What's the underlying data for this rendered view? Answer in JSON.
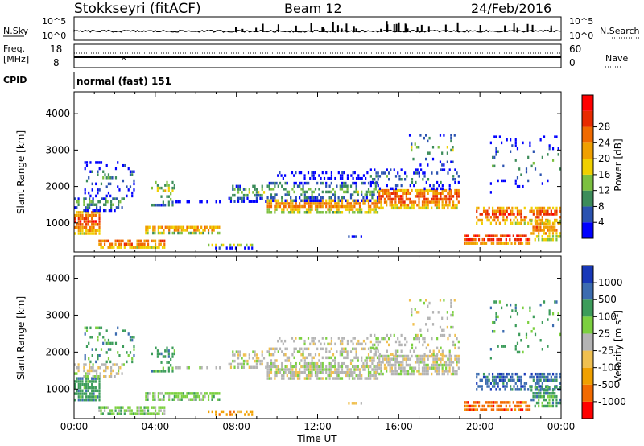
{
  "header": {
    "station": "Stokkseyri (fitACF)",
    "beam": "Beam 12",
    "date": "24/Feb/2016",
    "cpid_text": "normal (fast) 151"
  },
  "strips": {
    "nsky_label": "N.Sky",
    "nsearch_label": "N.Search",
    "freq_label_1": "Freq.",
    "freq_label_2": "[MHz]",
    "nave_label": "Nave",
    "cpid_label": "CPID",
    "nsky_ticks_left": [
      "10^5",
      "10^0"
    ],
    "nsky_ticks_right": [
      "10^5",
      "10^0"
    ],
    "freq_ticks_left": [
      "18",
      "8"
    ],
    "freq_ticks_right": [
      "60",
      "0"
    ]
  },
  "colors": {
    "power": [
      "#0000ff",
      "#2a52b0",
      "#3c8c5a",
      "#7cc040",
      "#f0d000",
      "#f0a000",
      "#f06a00",
      "#e82a00",
      "#ff0000"
    ],
    "velocity": [
      "#ff0000",
      "#f26a00",
      "#f0a000",
      "#f0c050",
      "#b4b4b4",
      "#7cd040",
      "#3c9c5a",
      "#3c6cb0",
      "#1838b8"
    ]
  },
  "chart_data": [
    {
      "type": "heatmap",
      "quantity": "power",
      "ylabel": "Slant Range [km]",
      "yticks": [
        "1000",
        "2000",
        "3000",
        "4000"
      ],
      "ylim": [
        200,
        4600
      ],
      "xlim": [
        0,
        24
      ],
      "colorbar_label": "Power [dB]",
      "colorbar_ticks": [
        "4",
        "8",
        "12",
        "16",
        "20",
        "24",
        "28"
      ],
      "colorbar_range": [
        0,
        32
      ]
    },
    {
      "type": "heatmap",
      "quantity": "velocity",
      "xlabel": "Time UT",
      "xticks": [
        "00:00",
        "04:00",
        "08:00",
        "12:00",
        "16:00",
        "20:00",
        "00:00"
      ],
      "ylabel": "Slant Range [km]",
      "yticks": [
        "1000",
        "2000",
        "3000",
        "4000"
      ],
      "ylim": [
        200,
        4600
      ],
      "xlim": [
        0,
        24
      ],
      "colorbar_label": "Velocity [m s^-1]",
      "colorbar_ticks": [
        "1000",
        "500",
        "100",
        "25",
        "-25",
        "-100",
        "-500",
        "-1000"
      ]
    }
  ]
}
